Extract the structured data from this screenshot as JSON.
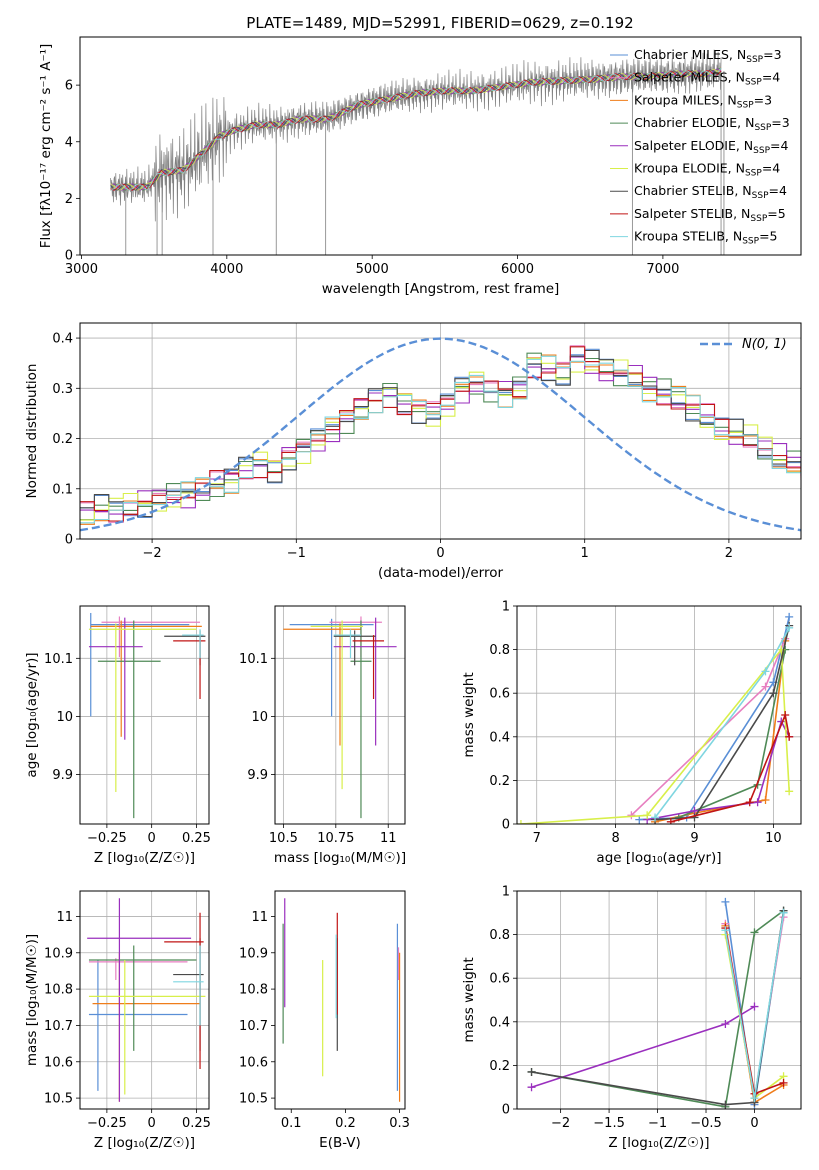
{
  "figure_title": "PLATE=1489, MJD=52991, FIBERID=0629, z=0.192",
  "series_colors": [
    "#5a8fd6",
    "#e77fc0",
    "#ef7d1a",
    "#4f8a57",
    "#9a2fbe",
    "#d8ef4a",
    "#4a4a4a",
    "#c01515",
    "#7fd6e0"
  ],
  "chart_data": [
    {
      "id": "spectrum",
      "type": "line",
      "xlabel": "wavelength [Angstrom, rest frame]",
      "ylabel": "Flux [fλ10⁻¹⁷ erg cm⁻² s⁻¹ A⁻¹]",
      "xlim": [
        2990,
        7950
      ],
      "ylim": [
        0,
        7.7
      ],
      "xticks": [
        3000,
        4000,
        5000,
        6000,
        7000
      ],
      "yticks": [
        0,
        2,
        4,
        6
      ],
      "grid": false,
      "legend_position": "top-right",
      "data_color": "#808080",
      "continuum": {
        "x": [
          3200,
          3300,
          3450,
          3550,
          3700,
          3850,
          3950,
          4050,
          4200,
          4350,
          4500,
          4700,
          4900,
          5100,
          5300,
          5500,
          5700,
          5900,
          6100,
          6300,
          6500,
          6700,
          6900,
          7100,
          7300,
          7400
        ],
        "y": [
          2.4,
          2.4,
          2.4,
          2.9,
          3.0,
          3.7,
          4.2,
          4.4,
          4.6,
          4.6,
          4.8,
          4.8,
          5.3,
          5.5,
          5.7,
          5.8,
          5.8,
          5.95,
          6.1,
          6.15,
          6.2,
          6.3,
          6.3,
          6.4,
          6.4,
          6.5
        ]
      },
      "legend": [
        {
          "label": "Chabrier MILES, N",
          "sub": "SSP",
          "suffix": "=3"
        },
        {
          "label": "Salpeter MILES, N",
          "sub": "SSP",
          "suffix": "=4"
        },
        {
          "label": "Kroupa MILES, N",
          "sub": "SSP",
          "suffix": "=3"
        },
        {
          "label": "Chabrier ELODIE, N",
          "sub": "SSP",
          "suffix": "=3"
        },
        {
          "label": "Salpeter ELODIE, N",
          "sub": "SSP",
          "suffix": "=4"
        },
        {
          "label": "Kroupa ELODIE, N",
          "sub": "SSP",
          "suffix": "=4"
        },
        {
          "label": "Chabrier STELIB, N",
          "sub": "SSP",
          "suffix": "=4"
        },
        {
          "label": "Salpeter STELIB, N",
          "sub": "SSP",
          "suffix": "=5"
        },
        {
          "label": "Kroupa STELIB, N",
          "sub": "SSP",
          "suffix": "=5"
        }
      ]
    },
    {
      "id": "residuals",
      "type": "histogram",
      "xlabel": "(data-model)/error",
      "ylabel": "Normed distribution",
      "xlim": [
        -2.5,
        2.5
      ],
      "ylim": [
        0,
        0.43
      ],
      "xticks": [
        -2,
        -1,
        0,
        1,
        2
      ],
      "yticks": [
        0.0,
        0.1,
        0.2,
        0.3,
        0.4
      ],
      "grid": true,
      "legend_position": "top-right",
      "legend_label": "N(0, 1)",
      "bin_width": 0.1,
      "envelope": [
        0.05,
        0.06,
        0.06,
        0.065,
        0.07,
        0.08,
        0.085,
        0.09,
        0.1,
        0.11,
        0.12,
        0.14,
        0.15,
        0.14,
        0.16,
        0.18,
        0.2,
        0.22,
        0.24,
        0.26,
        0.28,
        0.29,
        0.27,
        0.26,
        0.25,
        0.27,
        0.3,
        0.31,
        0.3,
        0.29,
        0.3,
        0.35,
        0.34,
        0.33,
        0.36,
        0.35,
        0.34,
        0.33,
        0.32,
        0.3,
        0.29,
        0.28,
        0.26,
        0.24,
        0.22,
        0.21,
        0.2,
        0.18,
        0.16,
        0.15,
        0.14,
        0.13,
        0.12,
        0.11,
        0.1,
        0.095,
        0.09,
        0.08,
        0.075,
        0.07
      ]
    },
    {
      "id": "age-vs-Z",
      "type": "errorbar",
      "xlabel": "Z [log₁₀(Z/Z☉)]",
      "ylabel": "age  [log₁₀(age/yr)]",
      "xlim": [
        -0.4,
        0.32
      ],
      "ylim": [
        9.815,
        10.19
      ],
      "xticks": [
        -0.25,
        0.0,
        0.25
      ],
      "yticks": [
        9.9,
        10.0,
        10.1
      ],
      "grid": true,
      "points": [
        {
          "x": -0.34,
          "y": 10.158,
          "xlo": 0.0,
          "xhi": 0.55,
          "ylo": 0.158,
          "yhi": 0.02
        },
        {
          "x": -0.18,
          "y": 10.162,
          "xlo": 0.1,
          "xhi": 0.45,
          "ylo": 0.06,
          "yhi": 0.01
        },
        {
          "x": -0.17,
          "y": 10.155,
          "xlo": 0.17,
          "xhi": 0.45,
          "ylo": 0.19,
          "yhi": 0.01
        },
        {
          "x": -0.1,
          "y": 10.095,
          "xlo": 0.2,
          "xhi": 0.15,
          "ylo": 0.27,
          "yhi": 0.07
        },
        {
          "x": -0.15,
          "y": 10.12,
          "xlo": 0.2,
          "xhi": 0.1,
          "ylo": 0.16,
          "yhi": 0.05
        },
        {
          "x": -0.2,
          "y": 10.15,
          "xlo": 0.15,
          "xhi": 0.45,
          "ylo": 0.28,
          "yhi": 0.01
        },
        {
          "x": 0.27,
          "y": 10.138,
          "xlo": 0.2,
          "xhi": 0.03,
          "ylo": 0.05,
          "yhi": 0.01
        },
        {
          "x": 0.27,
          "y": 10.13,
          "xlo": 0.15,
          "xhi": 0.03,
          "ylo": 0.1,
          "yhi": 0.01
        },
        {
          "x": 0.27,
          "y": 10.14,
          "xlo": 0.1,
          "xhi": 0.02,
          "ylo": 0.04,
          "yhi": 0.01
        }
      ]
    },
    {
      "id": "age-vs-mass",
      "type": "errorbar",
      "xlabel": "mass [log₁₀(M/M☉)]",
      "ylabel": "",
      "xlim": [
        10.46,
        11.08
      ],
      "ylim": [
        9.815,
        10.19
      ],
      "xticks": [
        10.5,
        10.75,
        11.0
      ],
      "yticks": [
        9.9,
        10.0,
        10.1
      ],
      "grid": true,
      "points": [
        {
          "x": 10.73,
          "y": 10.158,
          "xlo": 0.2,
          "xhi": 0.2,
          "ylo": 0.158,
          "yhi": 0.01
        },
        {
          "x": 10.87,
          "y": 10.162,
          "xlo": 0.15,
          "xhi": 0.1,
          "ylo": 0.06,
          "yhi": 0.01
        },
        {
          "x": 10.77,
          "y": 10.15,
          "xlo": 0.27,
          "xhi": 0.1,
          "ylo": 0.2,
          "yhi": 0.01
        },
        {
          "x": 10.87,
          "y": 10.095,
          "xlo": 0.05,
          "xhi": 0.05,
          "ylo": 0.27,
          "yhi": 0.07
        },
        {
          "x": 10.94,
          "y": 10.12,
          "xlo": 0.2,
          "xhi": 0.1,
          "ylo": 0.17,
          "yhi": 0.05
        },
        {
          "x": 10.78,
          "y": 10.155,
          "xlo": 0.15,
          "xhi": 0.1,
          "ylo": 0.28,
          "yhi": 0.01
        },
        {
          "x": 10.84,
          "y": 10.138,
          "xlo": 0.1,
          "xhi": 0.1,
          "ylo": 0.05,
          "yhi": 0.01
        },
        {
          "x": 10.93,
          "y": 10.13,
          "xlo": 0.1,
          "xhi": 0.05,
          "ylo": 0.1,
          "yhi": 0.01
        },
        {
          "x": 10.82,
          "y": 10.14,
          "xlo": 0.08,
          "xhi": 0.05,
          "ylo": 0.04,
          "yhi": 0.01
        }
      ]
    },
    {
      "id": "weight-vs-age",
      "type": "line",
      "xlabel": "age  [log₁₀(age/yr)]",
      "ylabel": "mass weight",
      "xlim": [
        6.75,
        10.35
      ],
      "ylim": [
        0.0,
        1.0
      ],
      "xticks": [
        7,
        8,
        9,
        10
      ],
      "yticks": [
        0.0,
        0.2,
        0.4,
        0.6,
        0.8,
        1.0
      ],
      "grid": true,
      "series": [
        {
          "x": [
            8.3,
            8.9,
            10.0,
            10.2
          ],
          "y": [
            0.02,
            0.03,
            0.65,
            0.95
          ]
        },
        {
          "x": [
            8.2,
            9.9,
            10.15
          ],
          "y": [
            0.04,
            0.63,
            0.85
          ]
        },
        {
          "x": [
            8.5,
            9.0,
            9.9,
            10.15
          ],
          "y": [
            0.01,
            0.05,
            0.11,
            0.84
          ]
        },
        {
          "x": [
            8.8,
            9.8,
            10.15
          ],
          "y": [
            0.03,
            0.18,
            0.8
          ]
        },
        {
          "x": [
            8.4,
            9.0,
            9.8,
            10.1,
            10.2
          ],
          "y": [
            0.02,
            0.06,
            0.1,
            0.47,
            0.4
          ]
        },
        {
          "x": [
            6.8,
            8.4,
            10.1,
            10.2
          ],
          "y": [
            0.0,
            0.04,
            0.8,
            0.15
          ]
        },
        {
          "x": [
            8.5,
            9.0,
            10.0,
            10.2
          ],
          "y": [
            0.02,
            0.03,
            0.6,
            0.91
          ]
        },
        {
          "x": [
            8.7,
            9.7,
            10.15,
            10.2
          ],
          "y": [
            0.01,
            0.1,
            0.5,
            0.4
          ]
        },
        {
          "x": [
            8.5,
            9.9,
            10.2
          ],
          "y": [
            0.03,
            0.7,
            0.9
          ]
        }
      ]
    },
    {
      "id": "mass-vs-Z",
      "type": "errorbar",
      "xlabel": "Z [log₁₀(Z/Z☉)]",
      "ylabel": "mass [log₁₀(M/M☉)]",
      "xlim": [
        -0.4,
        0.32
      ],
      "ylim": [
        10.47,
        11.07
      ],
      "xticks": [
        -0.25,
        0.0,
        0.25
      ],
      "yticks": [
        10.5,
        10.6,
        10.7,
        10.8,
        10.9,
        11.0
      ],
      "grid": true,
      "points": [
        {
          "x": -0.3,
          "y": 10.73,
          "xlo": 0.05,
          "xhi": 0.5,
          "ylo": 0.21,
          "yhi": 0.15
        },
        {
          "x": -0.2,
          "y": 10.875,
          "xlo": 0.15,
          "xhi": 0.4,
          "ylo": 0.05,
          "yhi": 0.01
        },
        {
          "x": -0.18,
          "y": 10.76,
          "xlo": 0.15,
          "xhi": 0.45,
          "ylo": 0.27,
          "yhi": 0.14
        },
        {
          "x": -0.1,
          "y": 10.88,
          "xlo": 0.25,
          "xhi": 0.35,
          "ylo": 0.25,
          "yhi": 0.04
        },
        {
          "x": -0.18,
          "y": 10.94,
          "xlo": 0.18,
          "xhi": 0.4,
          "ylo": 0.45,
          "yhi": 0.11
        },
        {
          "x": -0.15,
          "y": 10.78,
          "xlo": 0.2,
          "xhi": 0.45,
          "ylo": 0.27,
          "yhi": 0.1
        },
        {
          "x": 0.27,
          "y": 10.84,
          "xlo": 0.15,
          "xhi": 0.02,
          "ylo": 0.21,
          "yhi": 0.1
        },
        {
          "x": 0.27,
          "y": 10.93,
          "xlo": 0.2,
          "xhi": 0.02,
          "ylo": 0.35,
          "yhi": 0.08
        },
        {
          "x": 0.27,
          "y": 10.82,
          "xlo": 0.15,
          "xhi": 0.02,
          "ylo": 0.12,
          "yhi": 0.1
        }
      ]
    },
    {
      "id": "mass-vs-EBV",
      "type": "errorbar",
      "xlabel": "E(B-V)",
      "ylabel": "",
      "xlim": [
        0.07,
        0.31
      ],
      "ylim": [
        10.47,
        11.07
      ],
      "xticks": [
        0.1,
        0.2,
        0.3
      ],
      "yticks": [
        10.5,
        10.6,
        10.7,
        10.8,
        10.9,
        11.0
      ],
      "grid": false,
      "points": [
        {
          "x": 0.296,
          "y": 10.73,
          "ylo": 0.21,
          "yhi": 0.25
        },
        {
          "x": 0.298,
          "y": 10.875,
          "ylo": 0.05,
          "yhi": 0.04
        },
        {
          "x": 0.3,
          "y": 10.76,
          "ylo": 0.27,
          "yhi": 0.14
        },
        {
          "x": 0.085,
          "y": 10.88,
          "ylo": 0.23,
          "yhi": 0.1
        },
        {
          "x": 0.088,
          "y": 10.94,
          "ylo": 0.19,
          "yhi": 0.11
        },
        {
          "x": 0.158,
          "y": 10.74,
          "ylo": 0.18,
          "yhi": 0.14
        },
        {
          "x": 0.185,
          "y": 10.84,
          "ylo": 0.21,
          "yhi": 0.1
        },
        {
          "x": 0.185,
          "y": 10.93,
          "ylo": 0.2,
          "yhi": 0.08
        },
        {
          "x": 0.183,
          "y": 10.85,
          "ylo": 0.13,
          "yhi": 0.1
        }
      ]
    },
    {
      "id": "weight-vs-Z",
      "type": "line",
      "xlabel": "Z [log₁₀(Z/Z☉)]",
      "ylabel": "mass weight",
      "xlim": [
        -2.45,
        0.48
      ],
      "ylim": [
        0.0,
        1.0
      ],
      "xticks": [
        -2.0,
        -1.5,
        -1.0,
        -0.5,
        0.0
      ],
      "yticks": [
        0.0,
        0.2,
        0.4,
        0.6,
        0.8,
        1.0
      ],
      "grid": true,
      "series": [
        {
          "x": [
            -0.3,
            0.0,
            0.3
          ],
          "y": [
            0.95,
            0.02,
            0.9
          ]
        },
        {
          "x": [
            -0.3,
            0.0,
            0.3
          ],
          "y": [
            0.85,
            0.05,
            0.88
          ]
        },
        {
          "x": [
            -0.3,
            0.0,
            0.3
          ],
          "y": [
            0.84,
            0.03,
            0.11
          ]
        },
        {
          "x": [
            -2.3,
            -0.3,
            0.0,
            0.3
          ],
          "y": [
            0.17,
            0.01,
            0.81,
            0.91
          ]
        },
        {
          "x": [
            -2.3,
            -0.3,
            0.0
          ],
          "y": [
            0.1,
            0.39,
            0.47
          ]
        },
        {
          "x": [
            -0.3,
            0.0,
            0.3
          ],
          "y": [
            0.8,
            0.05,
            0.15
          ]
        },
        {
          "x": [
            -2.3,
            -0.3,
            0.0,
            0.3
          ],
          "y": [
            0.17,
            0.02,
            0.03,
            0.91
          ]
        },
        {
          "x": [
            -0.3,
            0.0,
            0.3
          ],
          "y": [
            0.83,
            0.07,
            0.12
          ]
        },
        {
          "x": [
            -0.3,
            0.0,
            0.3
          ],
          "y": [
            0.82,
            0.05,
            0.9
          ]
        }
      ]
    }
  ]
}
